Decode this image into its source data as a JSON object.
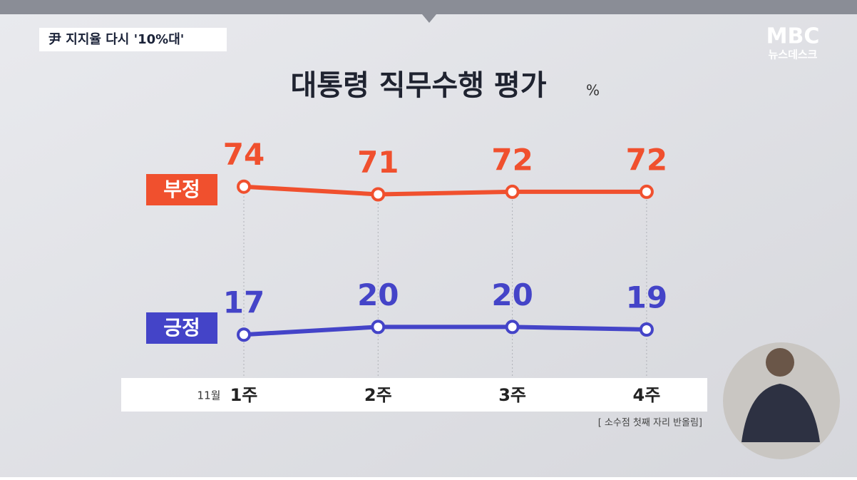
{
  "chart_data": {
    "type": "line",
    "title": "대통령 직무수행 평가",
    "unit": "%",
    "period": "11월",
    "categories": [
      "1주",
      "2주",
      "3주",
      "4주"
    ],
    "series": [
      {
        "name": "부정",
        "color": "#f0502e",
        "values": [
          74,
          71,
          72,
          72
        ]
      },
      {
        "name": "긍정",
        "color": "#4444c8",
        "values": [
          17,
          20,
          20,
          19
        ]
      }
    ],
    "note": "[ 소수점 첫째 자리 반올림]"
  },
  "header": {
    "caption": "尹 지지율 다시 '10%대'"
  },
  "logo": {
    "brand": "MBC",
    "program": "뉴스데스크"
  }
}
